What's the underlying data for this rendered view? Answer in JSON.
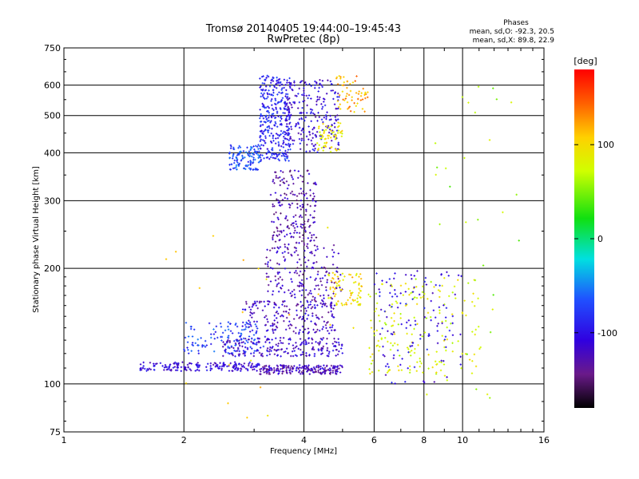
{
  "chart_data": {
    "type": "scatter",
    "title": "Tromsø 20140405 19:44:00–19:45:43",
    "subtitle": "RwPretec (8p)",
    "xlabel": "Frequency [MHz]",
    "ylabel": "Stationary phase Virtual Height [km]",
    "x_scale": "log",
    "y_scale": "log",
    "xlim": [
      1,
      16
    ],
    "ylim": [
      75,
      750
    ],
    "x_ticks": [
      1,
      2,
      4,
      6,
      8,
      10,
      16
    ],
    "x_tick_labels": [
      "1",
      "2",
      "4",
      "6",
      "8",
      "10",
      "16"
    ],
    "y_ticks": [
      75,
      100,
      200,
      300,
      400,
      500,
      600,
      750
    ],
    "y_tick_labels": [
      "75",
      "100",
      "200",
      "300",
      "400",
      "500",
      "600",
      "750"
    ],
    "grid": true,
    "annotation": {
      "heading": "Phases",
      "line1": "mean, sd,O: -92.3, 20.5",
      "line2": "mean, sd,X:  89.8, 22.9"
    },
    "colorbar": {
      "label": "[deg]",
      "range": [
        -180,
        180
      ],
      "ticks": [
        100,
        0,
        -100
      ],
      "tick_labels": [
        "100",
        "0",
        "-100"
      ]
    },
    "clusters": [
      {
        "f": [
          1.55,
          3.1
        ],
        "h": [
          108,
          114
        ],
        "phase": -110,
        "n": 180
      },
      {
        "f": [
          3.1,
          5.0
        ],
        "h": [
          106,
          112
        ],
        "phase": -125,
        "n": 200
      },
      {
        "f": [
          2.5,
          5.0
        ],
        "h": [
          118,
          132
        ],
        "phase": -115,
        "n": 220
      },
      {
        "f": [
          2.0,
          3.2
        ],
        "h": [
          120,
          145
        ],
        "phase": -75,
        "n": 120
      },
      {
        "f": [
          2.8,
          4.8
        ],
        "h": [
          135,
          165
        ],
        "phase": -120,
        "n": 200
      },
      {
        "f": [
          3.2,
          5.0
        ],
        "h": [
          165,
          230
        ],
        "phase": -125,
        "n": 180
      },
      {
        "f": [
          3.3,
          4.3
        ],
        "h": [
          230,
          360
        ],
        "phase": -130,
        "n": 200
      },
      {
        "f": [
          2.6,
          3.1
        ],
        "h": [
          360,
          420
        ],
        "phase": -70,
        "n": 120
      },
      {
        "f": [
          3.1,
          3.7
        ],
        "h": [
          380,
          640
        ],
        "phase": -90,
        "n": 320
      },
      {
        "f": [
          3.6,
          4.9
        ],
        "h": [
          400,
          620
        ],
        "phase": -110,
        "n": 240
      },
      {
        "f": [
          4.6,
          5.6
        ],
        "h": [
          160,
          195
        ],
        "phase": 100,
        "n": 80
      },
      {
        "f": [
          4.8,
          5.8
        ],
        "h": [
          510,
          640
        ],
        "phase": 120,
        "n": 60
      },
      {
        "f": [
          4.3,
          5.0
        ],
        "h": [
          400,
          480
        ],
        "phase": 90,
        "n": 60
      },
      {
        "f": [
          5.8,
          11.0
        ],
        "h": [
          105,
          190
        ],
        "phase": 80,
        "n": 180
      },
      {
        "f": [
          6.0,
          10.0
        ],
        "h": [
          100,
          200
        ],
        "phase": -105,
        "n": 120
      },
      {
        "f": [
          8.0,
          14.0
        ],
        "h": [
          85,
          600
        ],
        "phase": 60,
        "n": 35
      },
      {
        "f": [
          1.8,
          5.5
        ],
        "h": [
          80,
          260
        ],
        "phase": 100,
        "n": 20
      }
    ]
  }
}
